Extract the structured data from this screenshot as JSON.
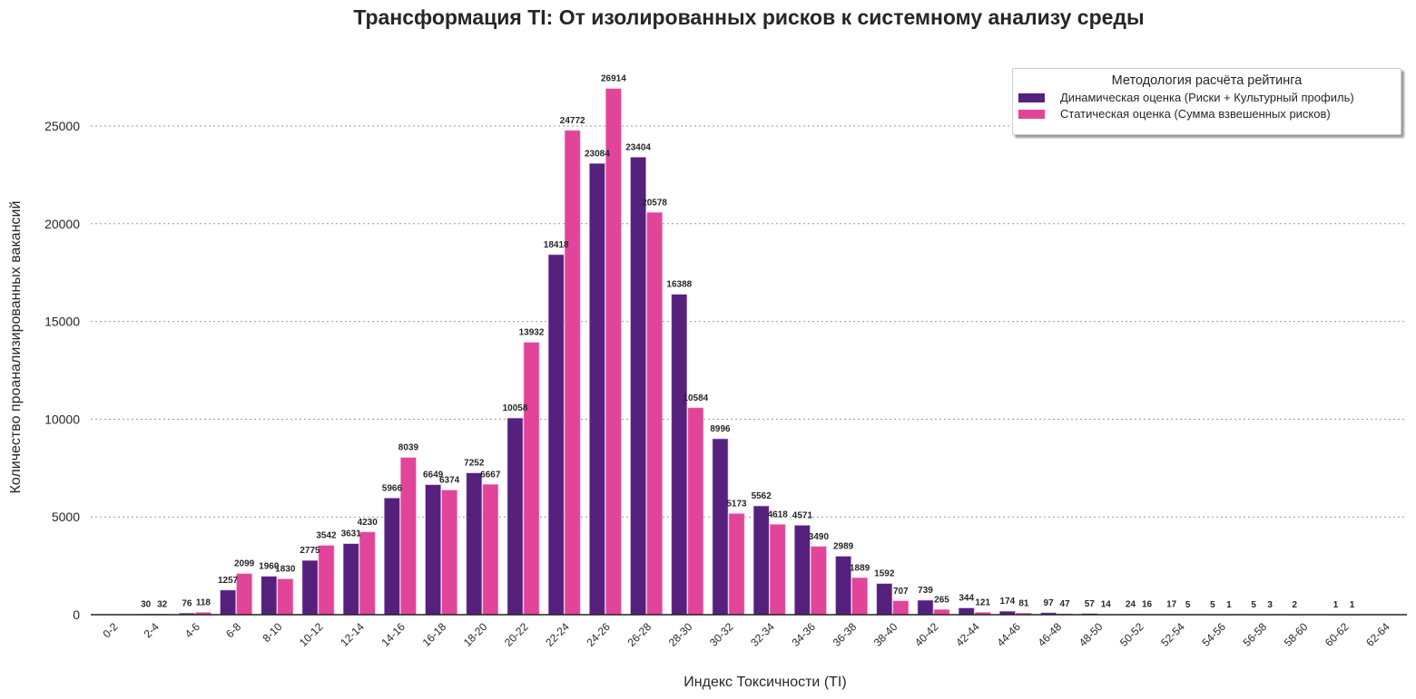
{
  "chart_data": {
    "type": "bar",
    "title": "Трансформация TI: От изолированных рисков к системному анализу среды",
    "xlabel": "Индекс Токсичности (TI)",
    "ylabel": "Количество проанализированных вакансий",
    "ylim": [
      0,
      27500
    ],
    "yticks": [
      0,
      5000,
      10000,
      15000,
      20000,
      25000
    ],
    "grid": true,
    "legend": {
      "title": "Методология расчёта рейтинга",
      "placement": "top-right"
    },
    "categories": [
      "0-2",
      "2-4",
      "4-6",
      "6-8",
      "8-10",
      "10-12",
      "12-14",
      "14-16",
      "16-18",
      "18-20",
      "20-22",
      "22-24",
      "24-26",
      "26-28",
      "28-30",
      "30-32",
      "32-34",
      "34-36",
      "36-38",
      "38-40",
      "40-42",
      "42-44",
      "44-46",
      "46-48",
      "48-50",
      "50-52",
      "52-54",
      "54-56",
      "56-58",
      "58-60",
      "60-62",
      "62-64"
    ],
    "series": [
      {
        "name": "Динамическая оценка (Риски + Культурный профиль)",
        "color": "#55217d",
        "values": [
          0,
          30,
          76,
          1257,
          1960,
          2775,
          3631,
          5966,
          6649,
          7252,
          10058,
          18418,
          23084,
          23404,
          16388,
          8996,
          5562,
          4571,
          2989,
          1592,
          739,
          344,
          174,
          97,
          57,
          24,
          17,
          5,
          5,
          2,
          1,
          0
        ]
      },
      {
        "name": "Статическая оценка (Сумма взвешенных рисков)",
        "color": "#e2449a",
        "values": [
          0,
          32,
          118,
          2099,
          1830,
          3542,
          4230,
          8039,
          6374,
          6667,
          13932,
          24772,
          26914,
          20578,
          10584,
          5173,
          4618,
          3490,
          1889,
          707,
          265,
          121,
          81,
          47,
          14,
          16,
          5,
          1,
          3,
          0,
          1,
          0
        ]
      }
    ]
  }
}
